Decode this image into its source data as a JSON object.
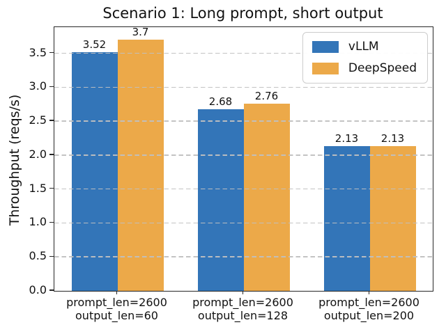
{
  "chart_data": {
    "type": "bar",
    "title": "Scenario 1: Long prompt, short output",
    "xlabel": "",
    "ylabel": "Throughput (reqs/s)",
    "categories": [
      "prompt_len=2600\noutput_len=60",
      "prompt_len=2600\noutput_len=128",
      "prompt_len=2600\noutput_len=200"
    ],
    "series": [
      {
        "name": "vLLM",
        "color": "#3375B8",
        "values": [
          3.52,
          2.68,
          2.13
        ],
        "value_labels": [
          "3.52",
          "2.68",
          "2.13"
        ]
      },
      {
        "name": "DeepSpeed",
        "color": "#ECA949",
        "values": [
          3.7,
          2.76,
          2.13
        ],
        "value_labels": [
          "3.7",
          "2.76",
          "2.13"
        ]
      }
    ],
    "ylim": [
      0,
      3.885
    ],
    "yticks": [
      "0.0",
      "0.5",
      "1.0",
      "1.5",
      "2.0",
      "2.5",
      "3.0",
      "3.5"
    ],
    "grid": {
      "axis": "y",
      "style": "dashed",
      "color": "#c0c0c0",
      "drawn_above_bars": true
    },
    "legend": {
      "position": "upper right",
      "entries": [
        "vLLM",
        "DeepSpeed"
      ]
    }
  }
}
